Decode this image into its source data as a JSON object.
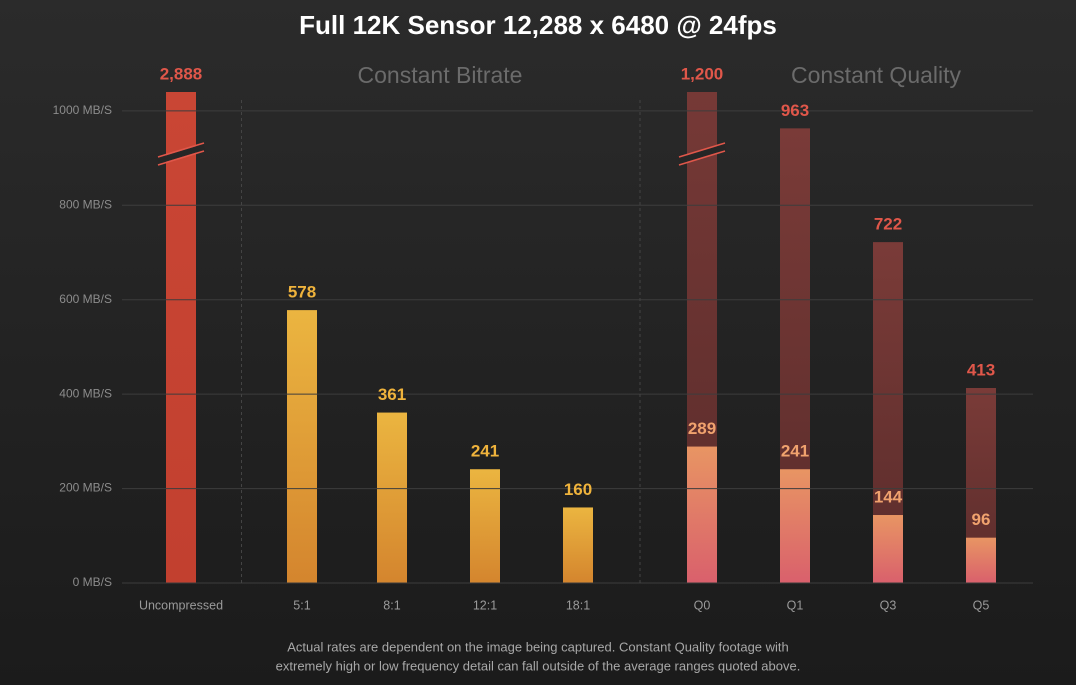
{
  "chart_data": {
    "type": "bar",
    "title": "Full 12K Sensor 12,288 x 6480 @ 24fps",
    "group_labels": [
      "Constant Bitrate",
      "Constant Quality"
    ],
    "categories": [
      "Uncompressed",
      "5:1",
      "8:1",
      "12:1",
      "18:1",
      "Q0",
      "Q1",
      "Q3",
      "Q5"
    ],
    "series": [
      {
        "color": [
          "#d6503f",
          "#c2402f"
        ],
        "label_color": "#e0574a",
        "values": [
          2888,
          null,
          null,
          null,
          null,
          null,
          null,
          null,
          null
        ],
        "value_labels": [
          "2,888",
          null,
          null,
          null,
          null,
          null,
          null,
          null,
          null
        ]
      },
      {
        "color": [
          "#ebb540",
          "#d4852e"
        ],
        "label_color": "#efb33c",
        "values": [
          null,
          578,
          361,
          241,
          160,
          null,
          null,
          null,
          null
        ],
        "value_labels": [
          null,
          "578",
          "361",
          "241",
          "160",
          null,
          null,
          null,
          null
        ]
      },
      {
        "color": [
          "#7a3b38",
          "#5a2c2b"
        ],
        "label_color": "#e0574a",
        "values": [
          null,
          null,
          null,
          null,
          null,
          1200,
          963,
          722,
          413
        ],
        "value_labels": [
          null,
          null,
          null,
          null,
          null,
          "1,200",
          "963",
          "722",
          "413"
        ]
      },
      {
        "color": [
          "#e89563",
          "#d9606c"
        ],
        "label_color": "#f0a26e",
        "values": [
          null,
          null,
          null,
          null,
          null,
          289,
          241,
          144,
          96
        ],
        "value_labels": [
          null,
          null,
          null,
          null,
          null,
          "289",
          "241",
          "144",
          "96"
        ]
      }
    ],
    "ylim": [
      0,
      1040
    ],
    "yticks": [
      {
        "value": 0,
        "label": "0 MB/S"
      },
      {
        "value": 200,
        "label": "200 MB/S"
      },
      {
        "value": 400,
        "label": "400 MB/S"
      },
      {
        "value": 600,
        "label": "600 MB/S"
      },
      {
        "value": 800,
        "label": "800 MB/S"
      },
      {
        "value": 1000,
        "label": "1000 MB/S"
      }
    ],
    "grid": true,
    "footnote": [
      "Actual rates are dependent on the image being captured. Constant Quality footage with",
      "extremely high or low frequency detail can fall outside of the average ranges quoted above."
    ]
  }
}
